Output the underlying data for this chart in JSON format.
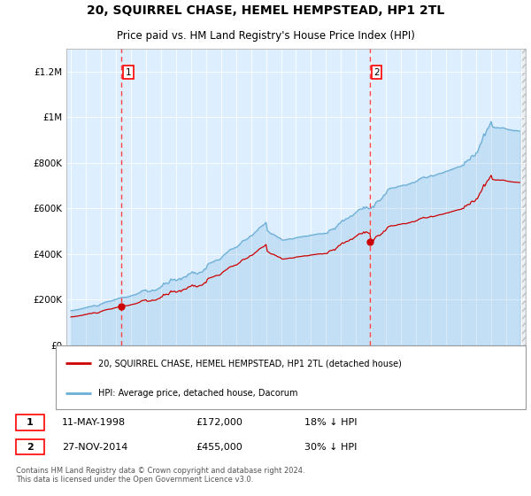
{
  "title": "20, SQUIRREL CHASE, HEMEL HEMPSTEAD, HP1 2TL",
  "subtitle": "Price paid vs. HM Land Registry's House Price Index (HPI)",
  "title_fontsize": 11,
  "subtitle_fontsize": 9,
  "background_color": "#ffffff",
  "plot_bg_color": "#ddeeff",
  "grid_color": "#ffffff",
  "ylim": [
    0,
    1300000
  ],
  "yticks": [
    0,
    200000,
    400000,
    600000,
    800000,
    1000000,
    1200000
  ],
  "ytick_labels": [
    "£0",
    "£200K",
    "£400K",
    "£600K",
    "£800K",
    "£1M",
    "£1.2M"
  ],
  "legend_label_red": "20, SQUIRREL CHASE, HEMEL HEMPSTEAD, HP1 2TL (detached house)",
  "legend_label_blue": "HPI: Average price, detached house, Dacorum",
  "annotation1_label": "1",
  "annotation1_date": "11-MAY-1998",
  "annotation1_price": "£172,000",
  "annotation1_hpi": "18% ↓ HPI",
  "annotation2_label": "2",
  "annotation2_date": "27-NOV-2014",
  "annotation2_price": "£455,000",
  "annotation2_hpi": "30% ↓ HPI",
  "footer": "Contains HM Land Registry data © Crown copyright and database right 2024.\nThis data is licensed under the Open Government Licence v3.0.",
  "sale1_x": 1998.36,
  "sale1_y": 172000,
  "sale2_x": 2014.92,
  "sale2_y": 455000,
  "vline1_x": 1998.36,
  "vline2_x": 2014.92,
  "hpi_color": "#6baed6",
  "sale_color": "#cc0000",
  "vline_color": "#ff4444",
  "xlim_left": 1994.7,
  "xlim_right": 2025.3
}
